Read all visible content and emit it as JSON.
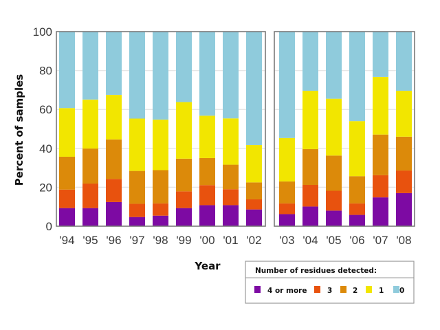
{
  "chart_data": {
    "type": "bar",
    "stacked": true,
    "title": "",
    "xlabel": "Year",
    "ylabel": "Percent of samples",
    "ylim": [
      0,
      100
    ],
    "yticks": [
      0,
      20,
      40,
      60,
      80,
      100
    ],
    "grid": true,
    "panels": [
      [
        "'94",
        "'95",
        "'96",
        "'97",
        "'98",
        "'99",
        "'00",
        "'01",
        "'02"
      ],
      [
        "'03",
        "'04",
        "'05",
        "'06",
        "'07",
        "'08"
      ]
    ],
    "categories": [
      "'94",
      "'95",
      "'96",
      "'97",
      "'98",
      "'99",
      "'00",
      "'01",
      "'02",
      "'03",
      "'04",
      "'05",
      "'06",
      "'07",
      "'08"
    ],
    "legend": {
      "title": "Number of residues detected:",
      "placement": "bottom-right"
    },
    "series": [
      {
        "name": "4 or more",
        "color": "#7d0aa3",
        "values": [
          9.3,
          9.3,
          12.4,
          4.7,
          5.4,
          9.3,
          10.8,
          10.8,
          8.6,
          6.2,
          10.1,
          8.0,
          5.8,
          14.8,
          17.0
        ]
      },
      {
        "name": "3",
        "color": "#e8520e",
        "values": [
          9.5,
          12.6,
          11.9,
          6.8,
          6.3,
          8.6,
          10.3,
          8.2,
          5.2,
          5.5,
          11.1,
          10.2,
          5.9,
          11.4,
          11.6
        ]
      },
      {
        "name": "2",
        "color": "#dc8a0a",
        "values": [
          16.9,
          18.0,
          20.3,
          16.9,
          17.1,
          16.8,
          13.9,
          12.6,
          8.7,
          11.3,
          18.4,
          18.1,
          14.0,
          20.9,
          17.4
        ]
      },
      {
        "name": "1",
        "color": "#f2e600",
        "values": [
          25.0,
          25.2,
          22.9,
          26.9,
          26.0,
          29.1,
          21.8,
          23.8,
          19.2,
          22.3,
          30.0,
          29.2,
          28.3,
          29.6,
          23.6
        ]
      },
      {
        "name": "0",
        "color": "#8fcbdc",
        "values": [
          39.3,
          34.9,
          32.5,
          44.7,
          45.2,
          36.2,
          43.2,
          44.6,
          58.3,
          54.7,
          30.4,
          34.5,
          46.0,
          23.3,
          30.4
        ]
      }
    ]
  }
}
